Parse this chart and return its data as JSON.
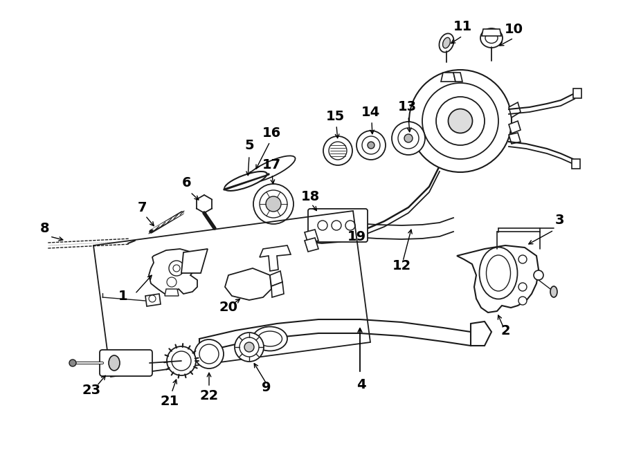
{
  "bg_color": "#ffffff",
  "line_color": "#1a1a1a",
  "label_fontsize": 14,
  "fig_width": 9.0,
  "fig_height": 6.61,
  "dpi": 100
}
